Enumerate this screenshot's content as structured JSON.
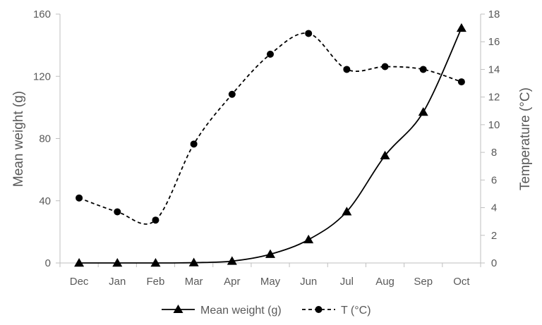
{
  "chart_data": {
    "type": "line",
    "categories": [
      "Dec",
      "Jan",
      "Feb",
      "Mar",
      "Apr",
      "May",
      "Jun",
      "Jul",
      "Aug",
      "Sep",
      "Oct"
    ],
    "ylabel": "Mean weight (g)",
    "y2label": "Temperature (°C)",
    "ylim": [
      0,
      160
    ],
    "yticks": [
      0,
      40,
      80,
      120,
      160
    ],
    "y2lim": [
      0,
      18
    ],
    "y2ticks": [
      0,
      2,
      4,
      6,
      8,
      10,
      12,
      14,
      16,
      18
    ],
    "grid": false,
    "legend_position": "bottom",
    "series": [
      {
        "name": "Mean weight (g)",
        "axis": "left",
        "line_style": "solid",
        "marker": "triangle",
        "values": [
          0,
          0,
          0,
          0.2,
          1.2,
          5.6,
          15,
          33,
          69,
          97,
          151
        ]
      },
      {
        "name": "T (°C)",
        "axis": "right",
        "line_style": "dashed",
        "marker": "circle",
        "values": [
          4.7,
          3.7,
          3.1,
          8.6,
          12.2,
          15.1,
          16.6,
          14.0,
          14.2,
          14.0,
          13.1
        ]
      }
    ],
    "colors": {
      "line": "#000000",
      "axis": "#bfbfbf",
      "text": "#595959"
    }
  }
}
